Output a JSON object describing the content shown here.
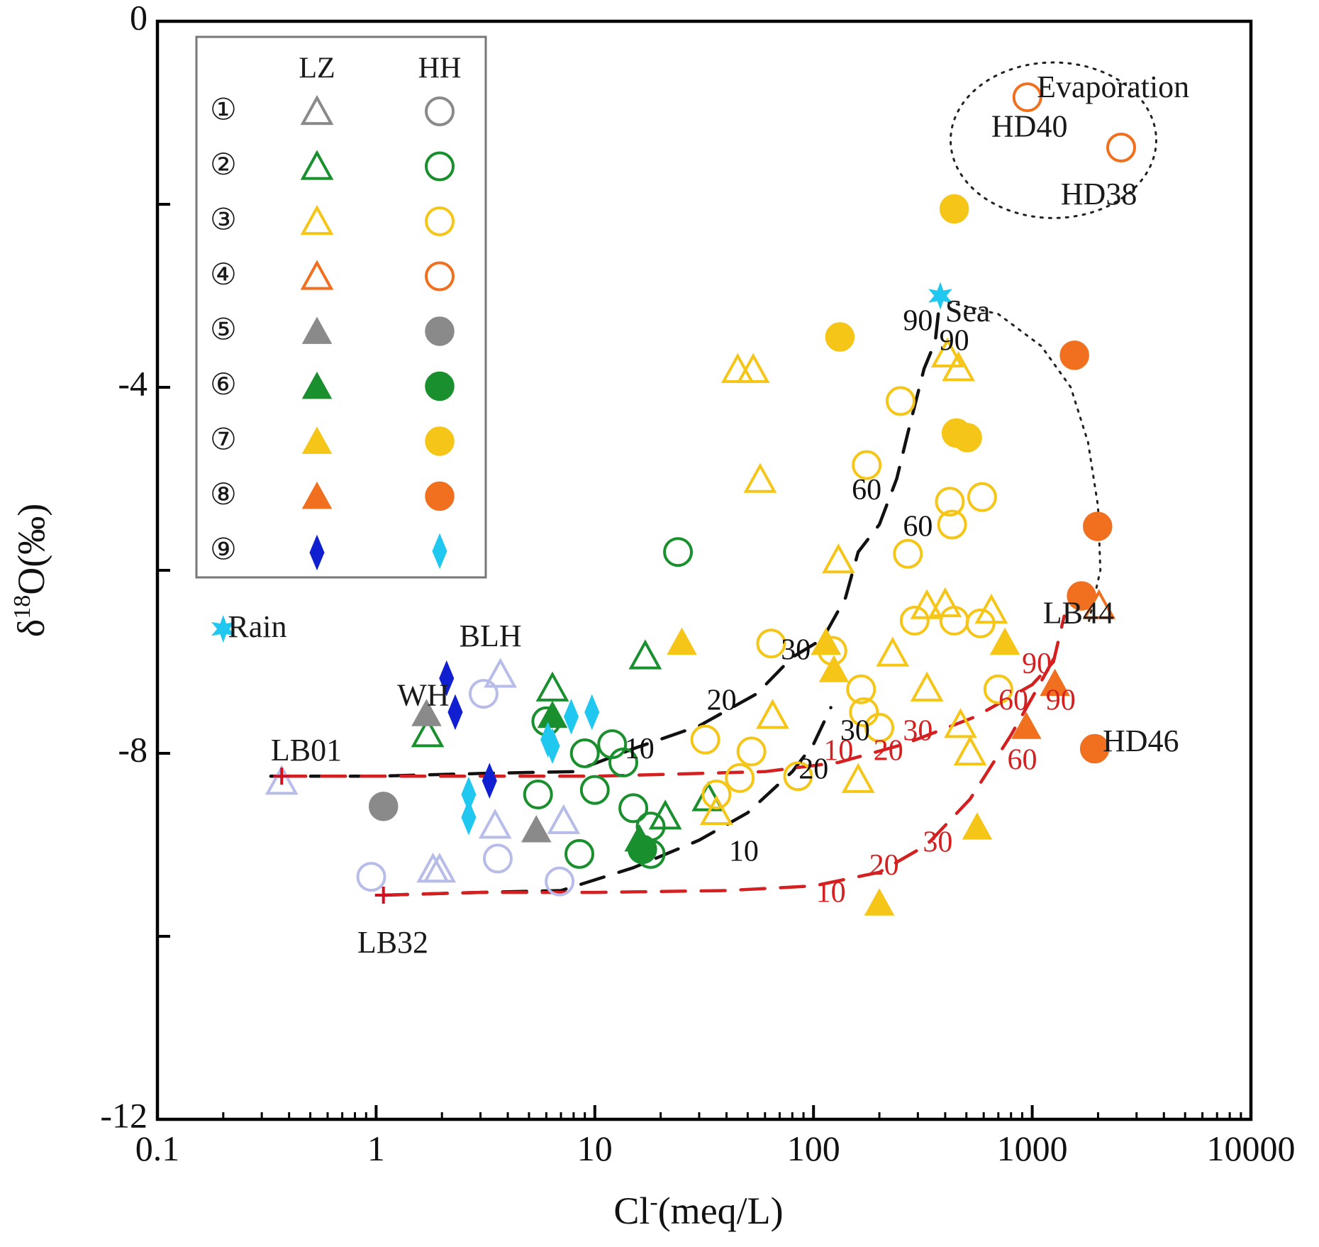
{
  "chart_data": {
    "type": "scatter",
    "xscale": "log",
    "xlim": [
      0.1,
      10000
    ],
    "ylim": [
      -12,
      0
    ],
    "xlabel_main": "Cl",
    "xlabel_sup": "-",
    "xlabel_rest": "(meq/L)",
    "ylabel_main": "δ",
    "ylabel_sup": "18",
    "ylabel_rest": "O(‰)",
    "x_ticks": [
      {
        "value": 0.1,
        "label": "0.1"
      },
      {
        "value": 1,
        "label": "1"
      },
      {
        "value": 10,
        "label": "10"
      },
      {
        "value": 100,
        "label": "100"
      },
      {
        "value": 1000,
        "label": "1000"
      },
      {
        "value": 10000,
        "label": "10000"
      }
    ],
    "y_ticks": [
      {
        "value": 0,
        "label": "0"
      },
      {
        "value": -2,
        "label": ""
      },
      {
        "value": -4,
        "label": "-4"
      },
      {
        "value": -6,
        "label": ""
      },
      {
        "value": -8,
        "label": "-8"
      },
      {
        "value": -10,
        "label": ""
      },
      {
        "value": -12,
        "label": "-12"
      }
    ],
    "legend": {
      "col_headers": [
        "LZ",
        "HH"
      ],
      "rows": [
        {
          "num": "①",
          "color": "#8a8a8a",
          "filled": false,
          "marker_lz": "triangle",
          "marker_hh": "circle"
        },
        {
          "num": "②",
          "color": "#1a8f2e",
          "filled": false,
          "marker_lz": "triangle",
          "marker_hh": "circle"
        },
        {
          "num": "③",
          "color": "#f5c518",
          "filled": false,
          "marker_lz": "triangle",
          "marker_hh": "circle"
        },
        {
          "num": "④",
          "color": "#f07020",
          "filled": false,
          "marker_lz": "triangle",
          "marker_hh": "circle"
        },
        {
          "num": "⑤",
          "color": "#8a8a8a",
          "filled": true,
          "marker_lz": "triangle",
          "marker_hh": "circle"
        },
        {
          "num": "⑥",
          "color": "#1a8f2e",
          "filled": true,
          "marker_lz": "triangle",
          "marker_hh": "circle"
        },
        {
          "num": "⑦",
          "color": "#f5c518",
          "filled": true,
          "marker_lz": "triangle",
          "marker_hh": "circle"
        },
        {
          "num": "⑧",
          "color": "#f07020",
          "filled": true,
          "marker_lz": "triangle",
          "marker_hh": "circle"
        },
        {
          "num": "⑨",
          "color_lz": "#1020d0",
          "color_hh": "#20c8f0",
          "filled": true,
          "marker_lz": "diamond",
          "marker_hh": "diamond"
        }
      ]
    },
    "annotations": [
      {
        "text": "Evaporation",
        "x": 1050,
        "y": -0.75
      },
      {
        "text": "HD40",
        "x": 650,
        "y": -1.18
      },
      {
        "text": "HD38",
        "x": 1350,
        "y": -1.92
      },
      {
        "text": "Sea",
        "x": 400,
        "y": -3.2
      },
      {
        "text": "Rain",
        "x": 0.21,
        "y": -6.65
      },
      {
        "text": "BLH",
        "x": 2.4,
        "y": -6.75
      },
      {
        "text": "WH",
        "x": 1.25,
        "y": -7.4
      },
      {
        "text": "LB01",
        "x": 0.33,
        "y": -8.0
      },
      {
        "text": "LB32",
        "x": 0.82,
        "y": -10.1
      },
      {
        "text": "LB44",
        "x": 1120,
        "y": -6.5
      },
      {
        "text": "HD46",
        "x": 2100,
        "y": -7.9
      }
    ],
    "series": [
      {
        "name": "LZ ①",
        "marker": "triangle",
        "filled": false,
        "color": "#8a8a8a",
        "points": [
          [
            0.37,
            -8.32
          ],
          [
            1.82,
            -9.28
          ],
          [
            1.95,
            -9.28
          ],
          [
            3.7,
            -7.15
          ],
          [
            3.5,
            -8.8
          ],
          [
            7.2,
            -8.75
          ]
        ]
      },
      {
        "name": "HH ①",
        "marker": "circle",
        "filled": false,
        "color": "#8a8a8a",
        "points": [
          [
            0.95,
            -9.35
          ],
          [
            3.1,
            -7.35
          ],
          [
            3.6,
            -9.15
          ],
          [
            6.9,
            -9.4
          ]
        ]
      },
      {
        "name": "LZ ②",
        "marker": "triangle",
        "filled": false,
        "color": "#1a8f2e",
        "points": [
          [
            6.4,
            -7.3
          ],
          [
            17,
            -6.95
          ],
          [
            1.72,
            -7.8
          ],
          [
            21,
            -8.7
          ],
          [
            33,
            -8.5
          ]
        ]
      },
      {
        "name": "HH ②",
        "marker": "circle",
        "filled": false,
        "color": "#1a8f2e",
        "points": [
          [
            24,
            -5.8
          ],
          [
            6,
            -7.65
          ],
          [
            9,
            -8.0
          ],
          [
            12,
            -7.9
          ],
          [
            13.5,
            -8.1
          ],
          [
            5.5,
            -8.45
          ],
          [
            10,
            -8.4
          ],
          [
            15,
            -8.6
          ],
          [
            18,
            -8.8
          ],
          [
            8.5,
            -9.1
          ],
          [
            18,
            -9.1
          ]
        ]
      },
      {
        "name": "LZ ③",
        "marker": "triangle",
        "filled": false,
        "color": "#f5c518",
        "points": [
          [
            45,
            -3.82
          ],
          [
            53,
            -3.82
          ],
          [
            57,
            -5.02
          ],
          [
            130,
            -5.9
          ],
          [
            330,
            -6.4
          ],
          [
            400,
            -6.38
          ],
          [
            410,
            -3.65
          ],
          [
            460,
            -3.8
          ],
          [
            230,
            -6.92
          ],
          [
            330,
            -7.3
          ],
          [
            470,
            -7.7
          ],
          [
            160,
            -8.3
          ],
          [
            520,
            -8.0
          ],
          [
            65,
            -7.6
          ],
          [
            36,
            -8.65
          ],
          [
            650,
            -6.45
          ]
        ]
      },
      {
        "name": "HH ③",
        "marker": "circle",
        "filled": false,
        "color": "#f5c518",
        "points": [
          [
            250,
            -4.15
          ],
          [
            175,
            -4.85
          ],
          [
            270,
            -5.82
          ],
          [
            420,
            -5.25
          ],
          [
            430,
            -5.5
          ],
          [
            590,
            -5.2
          ],
          [
            290,
            -6.55
          ],
          [
            440,
            -6.55
          ],
          [
            580,
            -6.58
          ],
          [
            64,
            -6.8
          ],
          [
            122,
            -6.88
          ],
          [
            165,
            -7.3
          ],
          [
            170,
            -7.55
          ],
          [
            200,
            -7.72
          ],
          [
            700,
            -7.3
          ],
          [
            32,
            -7.85
          ],
          [
            52,
            -7.98
          ],
          [
            46,
            -8.27
          ],
          [
            85,
            -8.25
          ],
          [
            36,
            -8.45
          ]
        ]
      },
      {
        "name": "LZ ④",
        "marker": "triangle",
        "filled": false,
        "color": "#f07020",
        "points": [
          [
            2020,
            -6.4
          ]
        ]
      },
      {
        "name": "HH ④",
        "marker": "circle",
        "filled": false,
        "color": "#f07020",
        "points": [
          [
            950,
            -0.83
          ],
          [
            2550,
            -1.38
          ]
        ]
      },
      {
        "name": "LZ ⑤",
        "marker": "triangle",
        "filled": true,
        "color": "#8a8a8a",
        "points": [
          [
            1.7,
            -7.58
          ],
          [
            5.4,
            -8.85
          ]
        ]
      },
      {
        "name": "HH ⑤",
        "marker": "circle",
        "filled": true,
        "color": "#8a8a8a",
        "points": [
          [
            1.08,
            -8.58
          ]
        ]
      },
      {
        "name": "LZ ⑥",
        "marker": "triangle",
        "filled": true,
        "color": "#1a8f2e",
        "points": [
          [
            6.4,
            -7.6
          ],
          [
            16,
            -8.95
          ]
        ]
      },
      {
        "name": "HH ⑥",
        "marker": "circle",
        "filled": true,
        "color": "#1a8f2e",
        "points": [
          [
            16.5,
            -9.05
          ]
        ]
      },
      {
        "name": "LZ ⑦",
        "marker": "triangle",
        "filled": true,
        "color": "#f5c518",
        "points": [
          [
            25,
            -6.8
          ],
          [
            114,
            -6.8
          ],
          [
            124,
            -7.1
          ],
          [
            750,
            -6.8
          ],
          [
            560,
            -8.82
          ],
          [
            200,
            -9.65
          ]
        ]
      },
      {
        "name": "HH ⑦",
        "marker": "circle",
        "filled": true,
        "color": "#f5c518",
        "points": [
          [
            440,
            -2.05
          ],
          [
            132,
            -3.45
          ],
          [
            450,
            -4.5
          ],
          [
            505,
            -4.55
          ]
        ]
      },
      {
        "name": "LZ ⑧",
        "marker": "triangle",
        "filled": true,
        "color": "#f07020",
        "points": [
          [
            1270,
            -7.25
          ],
          [
            940,
            -7.72
          ]
        ]
      },
      {
        "name": "HH ⑧",
        "marker": "circle",
        "filled": true,
        "color": "#f07020",
        "points": [
          [
            1560,
            -3.65
          ],
          [
            1990,
            -5.52
          ],
          [
            1680,
            -6.28
          ],
          [
            1930,
            -7.95
          ]
        ]
      },
      {
        "name": "LZ ⑨",
        "marker": "diamond",
        "filled": true,
        "color": "#1020d0",
        "points": [
          [
            2.1,
            -7.18
          ],
          [
            2.3,
            -7.55
          ],
          [
            3.3,
            -8.3
          ]
        ]
      },
      {
        "name": "HH ⑨",
        "marker": "diamond",
        "filled": true,
        "color": "#20c8f0",
        "points": [
          [
            2.65,
            -8.45
          ],
          [
            2.65,
            -8.7
          ],
          [
            6.1,
            -7.85
          ],
          [
            6.4,
            -7.92
          ],
          [
            7.8,
            -7.6
          ],
          [
            9.7,
            -7.55
          ]
        ]
      },
      {
        "name": "Rain",
        "marker": "star",
        "filled": true,
        "color": "#20c8f0",
        "points": [
          [
            0.2,
            -6.64
          ]
        ]
      },
      {
        "name": "Sea",
        "marker": "star",
        "filled": true,
        "color": "#20c8f0",
        "points": [
          [
            380,
            -3.0
          ]
        ]
      },
      {
        "name": "End-members",
        "marker": "plus",
        "filled": true,
        "color": "#d01020",
        "points": [
          [
            0.37,
            -8.25
          ],
          [
            1.08,
            -9.55
          ]
        ]
      }
    ],
    "mixing_lines": [
      {
        "name": "LB01-Sea",
        "color": "#111111",
        "dashed": true,
        "points": [
          [
            0.33,
            -8.25
          ],
          [
            1,
            -8.25
          ],
          [
            3,
            -8.22
          ],
          [
            8,
            -8.2
          ],
          [
            15,
            -7.95
          ],
          [
            30,
            -7.7
          ],
          [
            55,
            -7.35
          ],
          [
            80,
            -6.95
          ],
          [
            110,
            -6.75
          ],
          [
            140,
            -6.3
          ],
          [
            160,
            -5.8
          ],
          [
            200,
            -5.5
          ],
          [
            240,
            -5.0
          ],
          [
            270,
            -4.5
          ],
          [
            320,
            -3.8
          ],
          [
            360,
            -3.5
          ],
          [
            380,
            -3.0
          ]
        ]
      },
      {
        "name": "LB32-Sea",
        "color": "#111111",
        "dashed": true,
        "points": [
          [
            1.08,
            -9.55
          ],
          [
            3,
            -9.52
          ],
          [
            7,
            -9.5
          ],
          [
            15,
            -9.25
          ],
          [
            30,
            -8.95
          ],
          [
            50,
            -8.65
          ],
          [
            80,
            -8.2
          ],
          [
            100,
            -7.9
          ],
          [
            120,
            -7.5
          ]
        ]
      },
      {
        "name": "LB01-LB44",
        "color": "#d42020",
        "dashed": true,
        "points": [
          [
            0.37,
            -8.25
          ],
          [
            2,
            -8.25
          ],
          [
            10,
            -8.25
          ],
          [
            30,
            -8.22
          ],
          [
            60,
            -8.2
          ],
          [
            130,
            -8.1
          ],
          [
            260,
            -7.9
          ],
          [
            550,
            -7.6
          ],
          [
            1000,
            -7.25
          ],
          [
            1250,
            -7.0
          ],
          [
            1400,
            -6.5
          ]
        ]
      },
      {
        "name": "LB32-LB44",
        "color": "#d42020",
        "dashed": true,
        "points": [
          [
            1.08,
            -9.55
          ],
          [
            3,
            -9.52
          ],
          [
            10,
            -9.52
          ],
          [
            40,
            -9.5
          ],
          [
            100,
            -9.45
          ],
          [
            200,
            -9.3
          ],
          [
            330,
            -9.0
          ],
          [
            520,
            -8.5
          ],
          [
            800,
            -7.8
          ],
          [
            1050,
            -7.3
          ],
          [
            1300,
            -6.9
          ]
        ]
      },
      {
        "name": "Sea-LB44 curve",
        "color": "#222222",
        "dashed": "dotted",
        "points": [
          [
            380,
            -3.05
          ],
          [
            700,
            -3.2
          ],
          [
            1100,
            -3.55
          ],
          [
            1500,
            -4.0
          ],
          [
            1800,
            -4.6
          ],
          [
            2000,
            -5.3
          ],
          [
            2050,
            -6.0
          ],
          [
            1800,
            -6.6
          ]
        ]
      }
    ],
    "mix_labels": [
      {
        "text": "90",
        "x": 300,
        "y": -3.3,
        "color": "#111111"
      },
      {
        "text": "90",
        "x": 440,
        "y": -3.52,
        "color": "#111111"
      },
      {
        "text": "60",
        "x": 175,
        "y": -5.15,
        "color": "#111111"
      },
      {
        "text": "60",
        "x": 300,
        "y": -5.55,
        "color": "#111111"
      },
      {
        "text": "30",
        "x": 83,
        "y": -6.9,
        "color": "#111111"
      },
      {
        "text": "30",
        "x": 155,
        "y": -7.78,
        "color": "#111111"
      },
      {
        "text": "20",
        "x": 38,
        "y": -7.45,
        "color": "#111111"
      },
      {
        "text": "20",
        "x": 100,
        "y": -8.2,
        "color": "#111111"
      },
      {
        "text": "10",
        "x": 16,
        "y": -7.98,
        "color": "#111111"
      },
      {
        "text": "10",
        "x": 48,
        "y": -9.1,
        "color": "#111111"
      },
      {
        "text": "90",
        "x": 1050,
        "y": -7.05,
        "color": "#d42020"
      },
      {
        "text": "60",
        "x": 820,
        "y": -7.45,
        "color": "#d42020"
      },
      {
        "text": "90",
        "x": 1350,
        "y": -7.45,
        "color": "#d42020"
      },
      {
        "text": "60",
        "x": 900,
        "y": -8.1,
        "color": "#d42020"
      },
      {
        "text": "30",
        "x": 300,
        "y": -7.78,
        "color": "#d42020"
      },
      {
        "text": "20",
        "x": 220,
        "y": -8.0,
        "color": "#d42020"
      },
      {
        "text": "10",
        "x": 130,
        "y": -8.0,
        "color": "#d42020"
      },
      {
        "text": "30",
        "x": 370,
        "y": -9.0,
        "color": "#d42020"
      },
      {
        "text": "20",
        "x": 210,
        "y": -9.25,
        "color": "#d42020"
      },
      {
        "text": "10",
        "x": 120,
        "y": -9.55,
        "color": "#d42020"
      }
    ],
    "evaporation_ellipse": {
      "cx": 1250,
      "cy": -1.3,
      "rx_decades": 0.47,
      "ry": 0.85
    }
  }
}
